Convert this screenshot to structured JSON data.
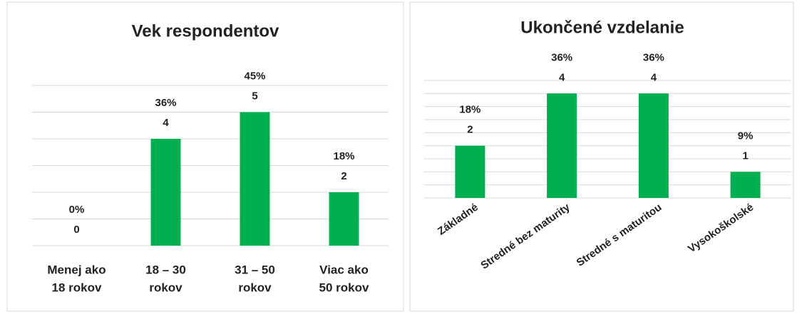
{
  "chart_data": [
    {
      "type": "bar",
      "title": "Vek respondentov",
      "categories": [
        [
          "Menej ako",
          "18 rokov"
        ],
        [
          "18 – 30",
          "rokov"
        ],
        [
          "31 – 50",
          "rokov"
        ],
        [
          "Viac ako",
          "50 rokov"
        ]
      ],
      "values": [
        0,
        4,
        5,
        2
      ],
      "percentages": [
        0,
        36,
        45,
        18
      ],
      "percentage_labels": [
        "0%",
        "36%",
        "45%",
        "18%"
      ],
      "color": "#00b050",
      "ylim": [
        0,
        6
      ],
      "gridlines": [
        0,
        1,
        2,
        3,
        4,
        5,
        6
      ]
    },
    {
      "type": "bar",
      "title": "Ukončené vzdelanie",
      "categories": [
        "Základné",
        "Stredné bez maturity",
        "Stredné  s maturitou",
        "Vysokoškolské"
      ],
      "values": [
        2,
        4,
        4,
        1
      ],
      "percentages": [
        18,
        36,
        36,
        9
      ],
      "percentage_labels": [
        "18%",
        "36%",
        "36%",
        "9%"
      ],
      "color": "#00b050",
      "ylim": [
        0,
        4.5
      ],
      "gridlines": [
        0,
        0.5,
        1,
        1.5,
        2,
        2.5,
        3,
        3.5,
        4,
        4.5
      ]
    }
  ]
}
